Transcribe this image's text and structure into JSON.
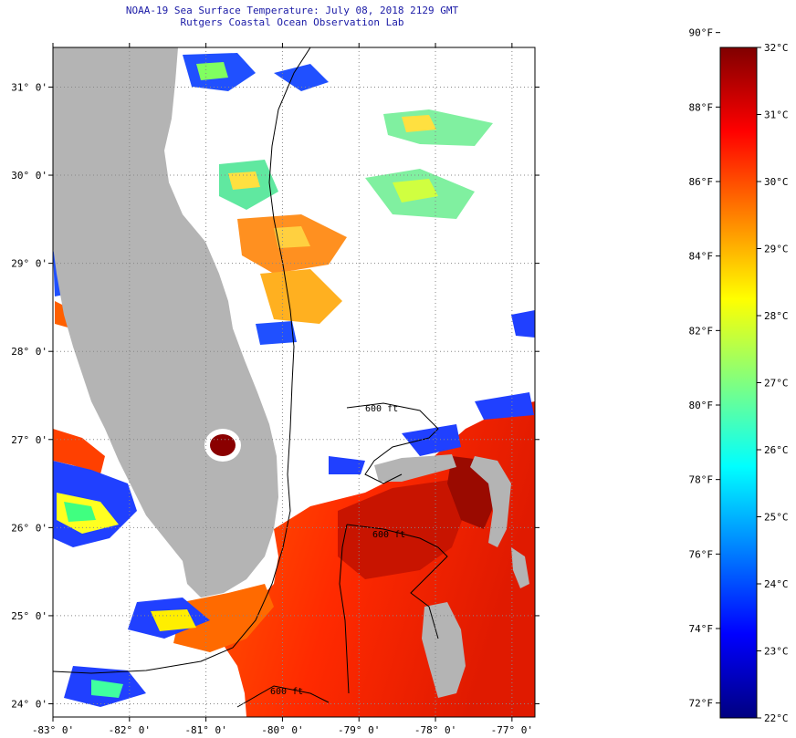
{
  "header": {
    "title": "NOAA-19 Sea Surface Temperature:  July 08, 2018 2129 GMT",
    "subtitle": "Rutgers Coastal Ocean Observation Lab"
  },
  "map": {
    "lat_labels": [
      "31° 0'",
      "30° 0'",
      "29° 0'",
      "28° 0'",
      "27° 0'",
      "26° 0'",
      "25° 0'",
      "24° 0'"
    ],
    "lon_labels": [
      "-83° 0'",
      "-82° 0'",
      "-81° 0'",
      "-80° 0'",
      "-79° 0'",
      "-78° 0'",
      "-77° 0'"
    ],
    "lat_values": [
      31,
      30,
      29,
      28,
      27,
      26,
      25,
      24
    ],
    "lon_values": [
      -83,
      -82,
      -81,
      -80,
      -79,
      -78,
      -77
    ],
    "extent": {
      "lon_min": -83,
      "lon_max": -76.7,
      "lat_min": 23.85,
      "lat_max": 31.45
    },
    "isobath_label": "600 ft",
    "colors": {
      "land": "#b4b4b4",
      "cloud": "#ffffff",
      "grid": "#888888"
    }
  },
  "colorbar": {
    "fahrenheit_labels": [
      "90°F",
      "88°F",
      "86°F",
      "84°F",
      "82°F",
      "80°F",
      "78°F",
      "76°F",
      "74°F",
      "72°F"
    ],
    "fahrenheit_values": [
      90,
      88,
      86,
      84,
      82,
      80,
      78,
      76,
      74,
      72
    ],
    "celsius_labels": [
      "32°C",
      "31°C",
      "30°C",
      "29°C",
      "28°C",
      "27°C",
      "26°C",
      "25°C",
      "24°C",
      "23°C",
      "22°C"
    ],
    "celsius_values": [
      32,
      31,
      30,
      29,
      28,
      27,
      26,
      25,
      24,
      23,
      22
    ],
    "range_c": [
      22,
      32
    ],
    "gradient": [
      "#000080",
      "#0000ff",
      "#0080ff",
      "#00ffff",
      "#80ff80",
      "#ffff00",
      "#ff8000",
      "#ff0000",
      "#800000"
    ]
  }
}
